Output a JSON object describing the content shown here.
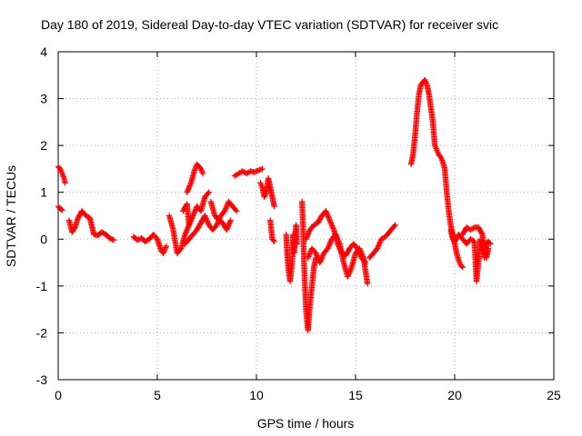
{
  "chart_data": {
    "type": "scatter",
    "title": "Day 180 of 2019, Sidereal Day-to-day VTEC variation (SDTVAR) for receiver svic",
    "xlabel": "GPS time / hours",
    "ylabel": "SDTVAR / TECUs",
    "xlim": [
      0,
      25
    ],
    "ylim": [
      -3,
      4
    ],
    "xticks": [
      0,
      5,
      10,
      15,
      20,
      25
    ],
    "yticks": [
      -3,
      -2,
      -1,
      0,
      1,
      2,
      3,
      4
    ],
    "grid": true,
    "marker": "+",
    "marker_color": "#ff0000",
    "series": [
      {
        "name": "SDTVAR",
        "segments": [
          [
            [
              0.0,
              1.55
            ],
            [
              0.1,
              1.5
            ],
            [
              0.2,
              1.4
            ],
            [
              0.3,
              1.3
            ],
            [
              0.35,
              1.2
            ]
          ],
          [
            [
              0.0,
              0.7
            ],
            [
              0.1,
              0.65
            ],
            [
              0.2,
              0.62
            ]
          ],
          [
            [
              0.55,
              0.4
            ],
            [
              0.7,
              0.15
            ],
            [
              0.85,
              0.25
            ],
            [
              1.0,
              0.45
            ],
            [
              1.2,
              0.6
            ],
            [
              1.4,
              0.5
            ],
            [
              1.6,
              0.45
            ],
            [
              1.8,
              0.1
            ],
            [
              2.0,
              0.08
            ],
            [
              2.2,
              0.15
            ],
            [
              2.4,
              0.1
            ],
            [
              2.6,
              0.02
            ],
            [
              2.8,
              -0.02
            ]
          ],
          [
            [
              3.8,
              0.05
            ],
            [
              4.0,
              -0.02
            ],
            [
              4.2,
              0.02
            ],
            [
              4.4,
              -0.05
            ],
            [
              4.6,
              0.0
            ],
            [
              4.8,
              0.1
            ],
            [
              5.0,
              0.0
            ],
            [
              5.2,
              -0.25
            ],
            [
              5.3,
              -0.3
            ],
            [
              5.45,
              -0.15
            ]
          ],
          [
            [
              5.6,
              0.5
            ],
            [
              5.8,
              0.2
            ],
            [
              6.0,
              -0.3
            ],
            [
              6.2,
              -0.2
            ],
            [
              6.4,
              0.1
            ],
            [
              6.6,
              0.3
            ],
            [
              6.8,
              0.5
            ],
            [
              7.0,
              0.7
            ],
            [
              7.2,
              0.6
            ],
            [
              7.4,
              0.9
            ],
            [
              7.6,
              1.0
            ]
          ],
          [
            [
              6.3,
              0.6
            ],
            [
              6.5,
              0.75
            ],
            [
              6.6,
              0.3
            ]
          ],
          [
            [
              6.4,
              -0.1
            ],
            [
              6.6,
              0.0
            ],
            [
              6.8,
              0.1
            ],
            [
              7.0,
              0.2
            ],
            [
              7.2,
              0.35
            ],
            [
              7.4,
              0.5
            ],
            [
              7.6,
              0.3
            ],
            [
              7.8,
              0.2
            ],
            [
              8.0,
              0.3
            ],
            [
              8.2,
              0.5
            ],
            [
              8.4,
              0.6
            ],
            [
              8.6,
              0.8
            ],
            [
              8.8,
              0.7
            ],
            [
              9.0,
              0.6
            ]
          ],
          [
            [
              6.5,
              1.0
            ],
            [
              6.7,
              1.2
            ],
            [
              6.8,
              1.35
            ],
            [
              6.9,
              1.5
            ],
            [
              7.0,
              1.6
            ],
            [
              7.1,
              1.55
            ],
            [
              7.2,
              1.5
            ],
            [
              7.3,
              1.4
            ]
          ],
          [
            [
              7.7,
              0.8
            ],
            [
              7.9,
              0.5
            ],
            [
              8.1,
              0.4
            ],
            [
              8.3,
              0.35
            ],
            [
              8.5,
              0.2
            ],
            [
              8.7,
              0.4
            ]
          ],
          [
            [
              8.9,
              1.35
            ],
            [
              9.1,
              1.4
            ],
            [
              9.3,
              1.45
            ],
            [
              9.5,
              1.4
            ],
            [
              9.7,
              1.45
            ],
            [
              9.9,
              1.43
            ],
            [
              10.1,
              1.47
            ],
            [
              10.3,
              1.5
            ]
          ],
          [
            [
              10.2,
              1.2
            ],
            [
              10.3,
              1.1
            ],
            [
              10.4,
              0.9
            ],
            [
              10.5,
              1.0
            ],
            [
              10.6,
              1.3
            ],
            [
              10.7,
              1.1
            ],
            [
              10.8,
              0.9
            ],
            [
              10.9,
              0.7
            ]
          ],
          [
            [
              10.7,
              0.4
            ],
            [
              10.8,
              0.0
            ],
            [
              10.9,
              -0.05
            ]
          ],
          [
            [
              11.5,
              0.1
            ],
            [
              11.55,
              -0.3
            ],
            [
              11.6,
              -0.6
            ],
            [
              11.7,
              -0.9
            ],
            [
              11.8,
              -0.5
            ],
            [
              11.85,
              0.1
            ],
            [
              11.9,
              -0.3
            ],
            [
              12.0,
              0.3
            ],
            [
              12.05,
              -0.1
            ]
          ],
          [
            [
              12.3,
              0.8
            ],
            [
              12.35,
              0.3
            ],
            [
              12.4,
              -0.5
            ],
            [
              12.45,
              -1.0
            ],
            [
              12.5,
              -1.5
            ],
            [
              12.55,
              -1.75
            ],
            [
              12.6,
              -1.95
            ],
            [
              12.7,
              -1.4
            ],
            [
              12.8,
              -1.0
            ],
            [
              12.9,
              -0.6
            ],
            [
              13.0,
              -0.4
            ]
          ],
          [
            [
              12.5,
              0.0
            ],
            [
              12.7,
              0.2
            ],
            [
              12.9,
              0.3
            ],
            [
              13.1,
              0.35
            ],
            [
              13.3,
              0.5
            ],
            [
              13.5,
              0.6
            ],
            [
              13.7,
              0.4
            ],
            [
              13.9,
              0.2
            ],
            [
              14.1,
              -0.1
            ],
            [
              14.3,
              -0.3
            ],
            [
              14.5,
              -0.35
            ],
            [
              14.7,
              -0.2
            ],
            [
              14.9,
              -0.1
            ],
            [
              15.1,
              -0.2
            ],
            [
              15.3,
              -0.4
            ],
            [
              15.5,
              -0.5
            ]
          ],
          [
            [
              12.6,
              -0.4
            ],
            [
              12.8,
              -0.2
            ],
            [
              13.0,
              -0.3
            ],
            [
              13.2,
              -0.5
            ],
            [
              13.4,
              -0.3
            ],
            [
              13.6,
              -0.2
            ],
            [
              13.8,
              0.0
            ],
            [
              14.0,
              0.1
            ],
            [
              14.2,
              -0.1
            ],
            [
              14.4,
              -0.5
            ],
            [
              14.6,
              -0.8
            ],
            [
              14.8,
              -0.6
            ],
            [
              15.0,
              -0.3
            ],
            [
              15.2,
              -0.2
            ],
            [
              15.4,
              -0.4
            ],
            [
              15.6,
              -0.95
            ]
          ],
          [
            [
              15.7,
              -0.4
            ],
            [
              15.9,
              -0.3
            ],
            [
              16.1,
              -0.2
            ],
            [
              16.3,
              0.0
            ],
            [
              16.5,
              0.05
            ],
            [
              16.7,
              0.15
            ],
            [
              16.9,
              0.25
            ],
            [
              17.0,
              0.3
            ]
          ],
          [
            [
              17.8,
              1.6
            ],
            [
              17.9,
              1.8
            ],
            [
              18.0,
              2.2
            ],
            [
              18.1,
              2.7
            ],
            [
              18.2,
              3.1
            ],
            [
              18.3,
              3.3
            ],
            [
              18.4,
              3.35
            ],
            [
              18.5,
              3.4
            ],
            [
              18.6,
              3.3
            ],
            [
              18.7,
              3.1
            ],
            [
              18.8,
              2.8
            ],
            [
              18.9,
              2.5
            ],
            [
              19.0,
              2.0
            ]
          ],
          [
            [
              19.0,
              2.0
            ],
            [
              19.1,
              1.9
            ],
            [
              19.2,
              1.8
            ],
            [
              19.3,
              1.75
            ],
            [
              19.4,
              1.65
            ],
            [
              19.5,
              1.5
            ],
            [
              19.6,
              1.0
            ],
            [
              19.7,
              0.6
            ],
            [
              19.8,
              0.3
            ],
            [
              19.9,
              0.1
            ],
            [
              20.0,
              -0.1
            ],
            [
              20.1,
              -0.3
            ],
            [
              20.2,
              -0.45
            ],
            [
              20.3,
              -0.55
            ],
            [
              20.4,
              -0.6
            ]
          ],
          [
            [
              19.8,
              0.2
            ],
            [
              19.9,
              0.0
            ],
            [
              20.0,
              -0.05
            ],
            [
              20.2,
              0.1
            ],
            [
              20.4,
              0.0
            ],
            [
              20.6,
              -0.1
            ],
            [
              20.8,
              0.0
            ],
            [
              21.0,
              -0.05
            ],
            [
              21.1,
              -0.9
            ],
            [
              21.2,
              -0.5
            ],
            [
              21.3,
              0.0
            ],
            [
              21.4,
              -0.2
            ],
            [
              21.5,
              -0.4
            ],
            [
              21.6,
              -0.1
            ],
            [
              21.7,
              -0.05
            ],
            [
              21.8,
              -0.1
            ]
          ],
          [
            [
              20.4,
              0.1
            ],
            [
              20.6,
              0.25
            ],
            [
              20.8,
              0.2
            ],
            [
              21.0,
              0.25
            ],
            [
              21.2,
              0.25
            ],
            [
              21.4,
              0.1
            ],
            [
              21.6,
              -0.4
            ],
            [
              21.7,
              -0.2
            ]
          ]
        ]
      }
    ]
  }
}
